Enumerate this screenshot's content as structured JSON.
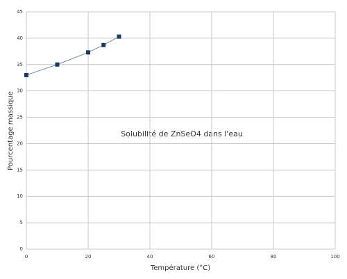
{
  "chart_data": {
    "type": "line",
    "title": "Solubilité de ZnSeO4 dans l'eau",
    "x_label": "Température (°C)",
    "y_label": "Pourcentage massique",
    "x": [
      0,
      10,
      20,
      25,
      30
    ],
    "series": [
      {
        "values": [
          33.0,
          35.0,
          37.3,
          38.7,
          40.3
        ],
        "color": "#1b3a5c"
      }
    ],
    "xlim": [
      0,
      100
    ],
    "xticks": [
      0,
      20,
      40,
      60,
      80,
      100
    ],
    "ylim": [
      0,
      45
    ],
    "yticks": [
      0,
      5,
      10,
      15,
      20,
      25,
      30,
      35,
      40,
      45
    ],
    "grid": true
  }
}
